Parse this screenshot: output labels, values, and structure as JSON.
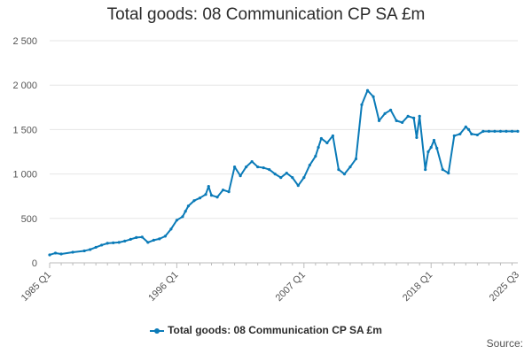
{
  "chart_data": {
    "type": "line",
    "title": "Total goods: 08 Communication CP SA £m",
    "xlabel": "",
    "ylabel": "",
    "ylim": [
      0,
      2500
    ],
    "y_ticks": [
      0,
      500,
      1000,
      1500,
      2000,
      2500
    ],
    "y_tick_labels": [
      "0",
      "500",
      "1 000",
      "1 500",
      "2 000",
      "2 500"
    ],
    "x_tick_labels": [
      "1985 Q1",
      "1996 Q1",
      "2007 Q1",
      "2018 Q1",
      "2025 Q3"
    ],
    "x_tick_positions": [
      1985.0,
      1996.0,
      2007.0,
      2018.0,
      2025.5
    ],
    "xlim": [
      1985.0,
      2025.5
    ],
    "grid": true,
    "legend_position": "bottom",
    "color": "#0b7bb8",
    "series": [
      {
        "name": "Total goods: 08 Communication CP SA £m",
        "x": [
          1985.0,
          1985.5,
          1986.0,
          1987.0,
          1988.0,
          1988.5,
          1989.0,
          1989.5,
          1990.0,
          1990.5,
          1991.0,
          1991.5,
          1992.0,
          1992.5,
          1993.0,
          1993.5,
          1994.0,
          1994.5,
          1995.0,
          1995.5,
          1996.0,
          1996.5,
          1996.75,
          1997.0,
          1997.5,
          1998.0,
          1998.5,
          1998.75,
          1999.0,
          1999.5,
          2000.0,
          2000.5,
          2001.0,
          2001.5,
          2002.0,
          2002.5,
          2003.0,
          2003.5,
          2004.0,
          2004.5,
          2005.0,
          2005.5,
          2006.0,
          2006.5,
          2007.0,
          2007.5,
          2008.0,
          2008.25,
          2008.5,
          2009.0,
          2009.5,
          2010.0,
          2010.5,
          2011.0,
          2011.5,
          2012.0,
          2012.5,
          2013.0,
          2013.5,
          2014.0,
          2014.5,
          2015.0,
          2015.5,
          2016.0,
          2016.5,
          2016.75,
          2017.0,
          2017.5,
          2017.75,
          2018.0,
          2018.25,
          2018.5,
          2019.0,
          2019.5,
          2020.0,
          2020.5,
          2021.0,
          2021.25,
          2021.5,
          2022.0,
          2022.5,
          2023.0,
          2023.5,
          2024.0,
          2024.5,
          2025.0,
          2025.5
        ],
        "values": [
          90,
          110,
          100,
          120,
          135,
          150,
          175,
          200,
          220,
          225,
          230,
          245,
          265,
          285,
          290,
          230,
          255,
          270,
          300,
          380,
          480,
          520,
          580,
          640,
          700,
          730,
          770,
          860,
          760,
          740,
          820,
          800,
          1080,
          980,
          1080,
          1140,
          1080,
          1070,
          1050,
          1000,
          960,
          1010,
          960,
          870,
          960,
          1100,
          1200,
          1300,
          1400,
          1350,
          1430,
          1050,
          1000,
          1080,
          1170,
          1780,
          1940,
          1870,
          1600,
          1680,
          1720,
          1600,
          1580,
          1650,
          1630,
          1410,
          1650,
          1050,
          1250,
          1300,
          1380,
          1290,
          1050,
          1010,
          1430,
          1450,
          1530,
          1500,
          1450,
          1440,
          1480,
          1480,
          1480,
          1480,
          1480,
          1480,
          1480
        ]
      }
    ]
  },
  "footer": {
    "source_label": "Source:"
  }
}
